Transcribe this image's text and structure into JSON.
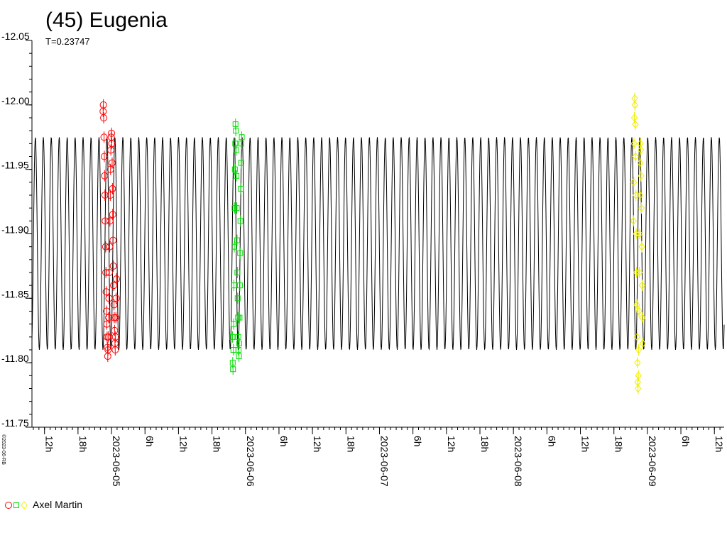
{
  "header": {
    "title": "(45) Eugenia",
    "subtitle": "T=0.23747"
  },
  "credit": "©2023-06-RB",
  "legend": {
    "observer": "Axel Martin",
    "marker_colors": [
      "#ff0000",
      "#00dd00",
      "#eeee00"
    ],
    "marker_shapes": [
      "circle",
      "square",
      "diamond"
    ]
  },
  "chart_data": {
    "type": "scatter",
    "title": "(45) Eugenia",
    "subtitle": "T=0.23747",
    "xlabel": "",
    "ylabel": "",
    "x_range": [
      "2023-06-04 09:45",
      "2023-06-09 13:45"
    ],
    "ylim": [
      -12.05,
      -11.75
    ],
    "y_ticks": [
      -12.05,
      -12.0,
      -11.95,
      -11.9,
      -11.85,
      -11.8,
      -11.75
    ],
    "y_tick_labels": [
      "-12.05",
      "-12.00",
      "-11.95",
      "-11.90",
      "-11.85",
      "-11.80",
      "-11.75"
    ],
    "y_inverted": true,
    "x_ticks": [
      {
        "time": "2023-06-04 12:00",
        "label": "12h"
      },
      {
        "time": "2023-06-04 18:00",
        "label": "18h"
      },
      {
        "time": "2023-06-05 00:00",
        "label": "2023-06-05"
      },
      {
        "time": "2023-06-05 06:00",
        "label": "6h"
      },
      {
        "time": "2023-06-05 12:00",
        "label": "12h"
      },
      {
        "time": "2023-06-05 18:00",
        "label": "18h"
      },
      {
        "time": "2023-06-06 00:00",
        "label": "2023-06-06"
      },
      {
        "time": "2023-06-06 06:00",
        "label": "6h"
      },
      {
        "time": "2023-06-06 12:00",
        "label": "12h"
      },
      {
        "time": "2023-06-06 18:00",
        "label": "18h"
      },
      {
        "time": "2023-06-07 00:00",
        "label": "2023-06-07"
      },
      {
        "time": "2023-06-07 06:00",
        "label": "6h"
      },
      {
        "time": "2023-06-07 12:00",
        "label": "12h"
      },
      {
        "time": "2023-06-07 18:00",
        "label": "18h"
      },
      {
        "time": "2023-06-08 00:00",
        "label": "2023-06-08"
      },
      {
        "time": "2023-06-08 06:00",
        "label": "6h"
      },
      {
        "time": "2023-06-08 12:00",
        "label": "12h"
      },
      {
        "time": "2023-06-08 18:00",
        "label": "18h"
      },
      {
        "time": "2023-06-09 00:00",
        "label": "2023-06-09"
      },
      {
        "time": "2023-06-09 06:00",
        "label": "6h"
      },
      {
        "time": "2023-06-09 12:00",
        "label": "12h"
      }
    ],
    "model_curve": {
      "color": "#000000",
      "period_hours": 2.8492,
      "phase_time": "2023-06-04 12:30",
      "mag_bright": -11.975,
      "mag_faint": -11.81
    },
    "series": [
      {
        "name": "Axel Martin",
        "color": "#ff0000",
        "marker": "circle",
        "points": [
          [
            "2023-06-04 22:30",
            -11.995
          ],
          [
            "2023-06-04 22:33",
            -12.0
          ],
          [
            "2023-06-04 22:36",
            -11.99
          ],
          [
            "2023-06-04 22:40",
            -11.975
          ],
          [
            "2023-06-04 22:43",
            -11.96
          ],
          [
            "2023-06-04 22:46",
            -11.945
          ],
          [
            "2023-06-04 22:50",
            -11.93
          ],
          [
            "2023-06-04 22:53",
            -11.91
          ],
          [
            "2023-06-04 22:57",
            -11.89
          ],
          [
            "2023-06-04 23:00",
            -11.87
          ],
          [
            "2023-06-04 23:03",
            -11.855
          ],
          [
            "2023-06-04 23:07",
            -11.84
          ],
          [
            "2023-06-04 23:10",
            -11.83
          ],
          [
            "2023-06-04 23:13",
            -11.82
          ],
          [
            "2023-06-04 23:17",
            -11.812
          ],
          [
            "2023-06-04 23:20",
            -11.805
          ],
          [
            "2023-06-04 23:23",
            -11.81
          ],
          [
            "2023-06-04 23:27",
            -11.82
          ],
          [
            "2023-06-04 23:30",
            -11.835
          ],
          [
            "2023-06-04 23:33",
            -11.85
          ],
          [
            "2023-06-04 23:37",
            -11.87
          ],
          [
            "2023-06-04 23:40",
            -11.89
          ],
          [
            "2023-06-04 23:43",
            -11.91
          ],
          [
            "2023-06-04 23:47",
            -11.93
          ],
          [
            "2023-06-04 23:50",
            -11.95
          ],
          [
            "2023-06-04 23:53",
            -11.965
          ],
          [
            "2023-06-04 23:57",
            -11.975
          ],
          [
            "2023-06-05 00:00",
            -11.978
          ],
          [
            "2023-06-05 00:03",
            -11.97
          ],
          [
            "2023-06-05 00:07",
            -11.955
          ],
          [
            "2023-06-05 00:10",
            -11.935
          ],
          [
            "2023-06-05 00:13",
            -11.915
          ],
          [
            "2023-06-05 00:17",
            -11.895
          ],
          [
            "2023-06-05 00:20",
            -11.875
          ],
          [
            "2023-06-05 00:23",
            -11.86
          ],
          [
            "2023-06-05 00:27",
            -11.845
          ],
          [
            "2023-06-05 00:30",
            -11.835
          ],
          [
            "2023-06-05 00:33",
            -11.825
          ],
          [
            "2023-06-05 00:37",
            -11.815
          ],
          [
            "2023-06-05 00:40",
            -11.81
          ],
          [
            "2023-06-05 00:43",
            -11.82
          ],
          [
            "2023-06-05 00:47",
            -11.835
          ],
          [
            "2023-06-05 00:50",
            -11.85
          ],
          [
            "2023-06-05 00:53",
            -11.865
          ]
        ]
      },
      {
        "name": "Axel Martin",
        "color": "#00dd00",
        "marker": "square",
        "points": [
          [
            "2023-06-05 21:40",
            -11.82
          ],
          [
            "2023-06-05 21:43",
            -11.8
          ],
          [
            "2023-06-05 21:46",
            -11.795
          ],
          [
            "2023-06-05 21:50",
            -11.81
          ],
          [
            "2023-06-05 21:53",
            -11.83
          ],
          [
            "2023-06-05 21:56",
            -11.86
          ],
          [
            "2023-06-05 22:00",
            -11.89
          ],
          [
            "2023-06-05 22:03",
            -11.92
          ],
          [
            "2023-06-05 22:06",
            -11.95
          ],
          [
            "2023-06-05 22:10",
            -11.97
          ],
          [
            "2023-06-05 22:13",
            -11.985
          ],
          [
            "2023-06-05 22:16",
            -11.98
          ],
          [
            "2023-06-05 22:20",
            -11.965
          ],
          [
            "2023-06-05 22:23",
            -11.945
          ],
          [
            "2023-06-05 22:26",
            -11.92
          ],
          [
            "2023-06-05 22:30",
            -11.895
          ],
          [
            "2023-06-05 22:33",
            -11.87
          ],
          [
            "2023-06-05 22:36",
            -11.85
          ],
          [
            "2023-06-05 22:40",
            -11.835
          ],
          [
            "2023-06-05 22:43",
            -11.82
          ],
          [
            "2023-06-05 22:46",
            -11.81
          ],
          [
            "2023-06-05 22:50",
            -11.805
          ],
          [
            "2023-06-05 22:53",
            -11.815
          ],
          [
            "2023-06-05 22:56",
            -11.835
          ],
          [
            "2023-06-05 23:00",
            -11.86
          ],
          [
            "2023-06-05 23:03",
            -11.885
          ],
          [
            "2023-06-05 23:06",
            -11.91
          ],
          [
            "2023-06-05 23:10",
            -11.935
          ],
          [
            "2023-06-05 23:13",
            -11.955
          ],
          [
            "2023-06-05 23:16",
            -11.97
          ],
          [
            "2023-06-05 23:20",
            -11.975
          ]
        ]
      },
      {
        "name": "Axel Martin",
        "color": "#eeee00",
        "marker": "diamond",
        "points": [
          [
            "2023-06-08 21:30",
            -11.91
          ],
          [
            "2023-06-08 21:33",
            -11.94
          ],
          [
            "2023-06-08 21:36",
            -11.97
          ],
          [
            "2023-06-08 21:40",
            -11.99
          ],
          [
            "2023-06-08 21:43",
            -12.005
          ],
          [
            "2023-06-08 21:46",
            -12.0
          ],
          [
            "2023-06-08 21:50",
            -11.985
          ],
          [
            "2023-06-08 21:53",
            -11.96
          ],
          [
            "2023-06-08 21:56",
            -11.93
          ],
          [
            "2023-06-08 22:00",
            -11.9
          ],
          [
            "2023-06-08 22:03",
            -11.87
          ],
          [
            "2023-06-08 22:06",
            -11.845
          ],
          [
            "2023-06-08 22:10",
            -11.82
          ],
          [
            "2023-06-08 22:13",
            -11.8
          ],
          [
            "2023-06-08 22:16",
            -11.785
          ],
          [
            "2023-06-08 22:20",
            -11.78
          ],
          [
            "2023-06-08 22:23",
            -11.79
          ],
          [
            "2023-06-08 22:26",
            -11.81
          ],
          [
            "2023-06-08 22:30",
            -11.84
          ],
          [
            "2023-06-08 22:33",
            -11.87
          ],
          [
            "2023-06-08 22:36",
            -11.9
          ],
          [
            "2023-06-08 22:40",
            -11.93
          ],
          [
            "2023-06-08 22:43",
            -11.955
          ],
          [
            "2023-06-08 22:46",
            -11.97
          ],
          [
            "2023-06-08 22:50",
            -11.965
          ],
          [
            "2023-06-08 22:53",
            -11.945
          ],
          [
            "2023-06-08 22:56",
            -11.92
          ],
          [
            "2023-06-08 23:00",
            -11.89
          ],
          [
            "2023-06-08 23:03",
            -11.86
          ],
          [
            "2023-06-08 23:06",
            -11.835
          ],
          [
            "2023-06-08 23:10",
            -11.815
          ]
        ]
      }
    ]
  }
}
